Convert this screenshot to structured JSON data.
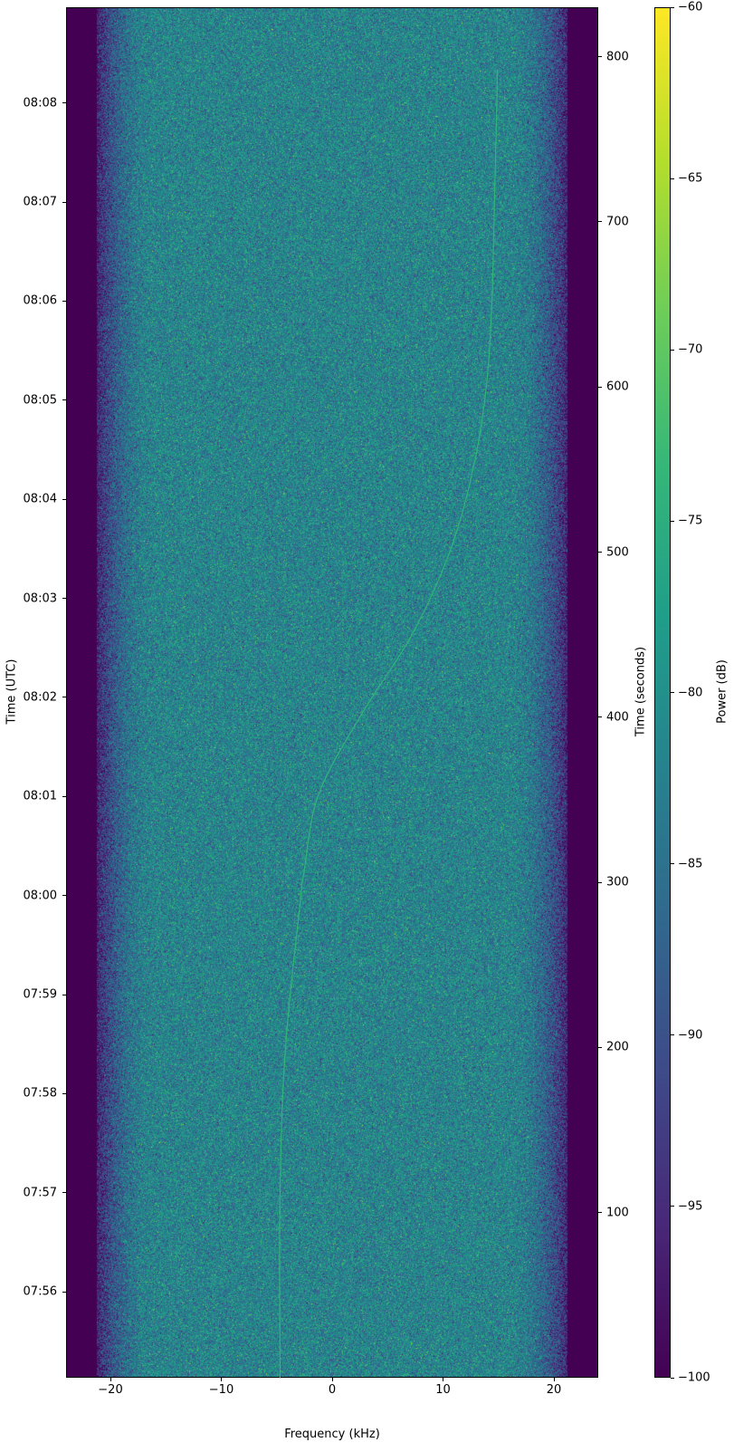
{
  "chart_data": {
    "type": "heatmap",
    "subtype": "spectrogram",
    "xlabel": "Frequency (kHz)",
    "ylabel_left": "Time (UTC)",
    "ylabel_right": "Time (seconds)",
    "colorbar_label": "Power (dB)",
    "colormap": "viridis",
    "xlim": [
      -24,
      24
    ],
    "ylim_seconds": [
      0,
      830
    ],
    "clim": [
      -100,
      -60
    ],
    "x_ticks": [
      -20,
      -10,
      0,
      10,
      20
    ],
    "x_tick_labels": [
      "−20",
      "−10",
      "0",
      "10",
      "20"
    ],
    "y_right_ticks": [
      100,
      200,
      300,
      400,
      500,
      600,
      700,
      800
    ],
    "y_right_tick_labels": [
      "100",
      "200",
      "300",
      "400",
      "500",
      "600",
      "700",
      "800"
    ],
    "y_left_ticks_seconds": [
      52,
      112,
      172,
      232,
      292,
      352,
      412,
      472,
      532,
      592,
      652,
      712,
      772
    ],
    "y_left_tick_labels": [
      "07:56",
      "07:57",
      "07:58",
      "07:59",
      "08:00",
      "08:01",
      "08:02",
      "08:03",
      "08:04",
      "08:05",
      "08:06",
      "08:07",
      "08:08"
    ],
    "colorbar_ticks": [
      -100,
      -95,
      -90,
      -85,
      -80,
      -75,
      -70,
      -65,
      -60
    ],
    "colorbar_tick_labels": [
      "−100",
      "−95",
      "−90",
      "−85",
      "−80",
      "−75",
      "−70",
      "−65",
      "−60"
    ],
    "noise_floor_db": -82,
    "passband_khz": [
      -21,
      21
    ],
    "signal_trace": {
      "time_s": [
        0,
        112,
        200,
        300,
        352,
        400,
        450,
        500,
        550,
        600,
        650,
        700,
        792
      ],
      "freq_khz": [
        -4.7,
        -4.7,
        -4.2,
        -2.7,
        -1.3,
        2.5,
        7.2,
        10.6,
        12.7,
        13.9,
        14.4,
        14.6,
        14.9
      ],
      "power_db": -74
    }
  }
}
